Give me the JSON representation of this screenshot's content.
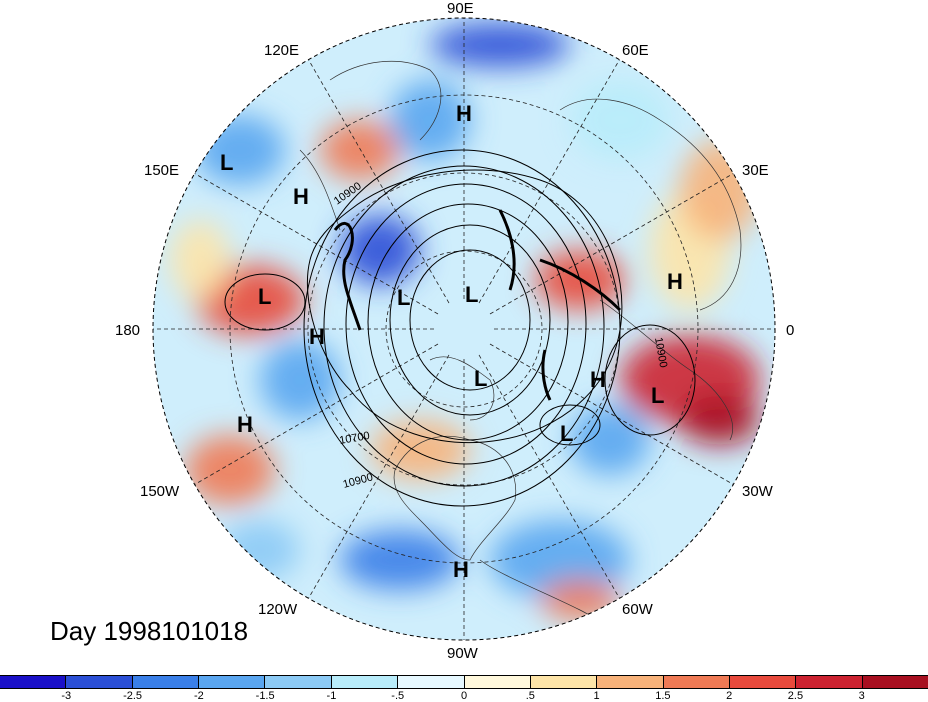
{
  "title": "Day 1998101018",
  "longitude_labels": [
    "90E",
    "60E",
    "30E",
    "0",
    "30W",
    "60W",
    "90W",
    "120W",
    "150W",
    "180",
    "150E",
    "120E"
  ],
  "contour_labels": [
    "10900",
    "10700",
    "10900",
    "10900"
  ],
  "pressure_centers": [
    {
      "type": "H",
      "label": "H"
    },
    {
      "type": "L",
      "label": "L"
    },
    {
      "type": "H",
      "label": "H"
    },
    {
      "type": "L",
      "label": "L"
    },
    {
      "type": "H",
      "label": "H"
    },
    {
      "type": "H",
      "label": "H"
    },
    {
      "type": "L",
      "label": "L"
    },
    {
      "type": "L",
      "label": "L"
    },
    {
      "type": "L",
      "label": "L"
    },
    {
      "type": "H",
      "label": "H"
    },
    {
      "type": "H",
      "label": "H"
    },
    {
      "type": "L",
      "label": "L"
    },
    {
      "type": "L",
      "label": "L"
    },
    {
      "type": "H",
      "label": "H"
    },
    {
      "type": "H",
      "label": "H"
    }
  ],
  "colorbar": {
    "colors": [
      "#1a10c8",
      "#2b4fd6",
      "#3a7fe8",
      "#5aa6f0",
      "#8ccaf5",
      "#b8ecfa",
      "#e6f8ff",
      "#fff8dc",
      "#fde4a8",
      "#f7b27a",
      "#ef7a55",
      "#e84a3c",
      "#cc2230",
      "#a80f20"
    ],
    "ticks": [
      "-3",
      "-2.5",
      "-2",
      "-1.5",
      "-1",
      "-.5",
      "0",
      ".5",
      "1",
      "1.5",
      "2",
      "2.5",
      "3"
    ]
  }
}
